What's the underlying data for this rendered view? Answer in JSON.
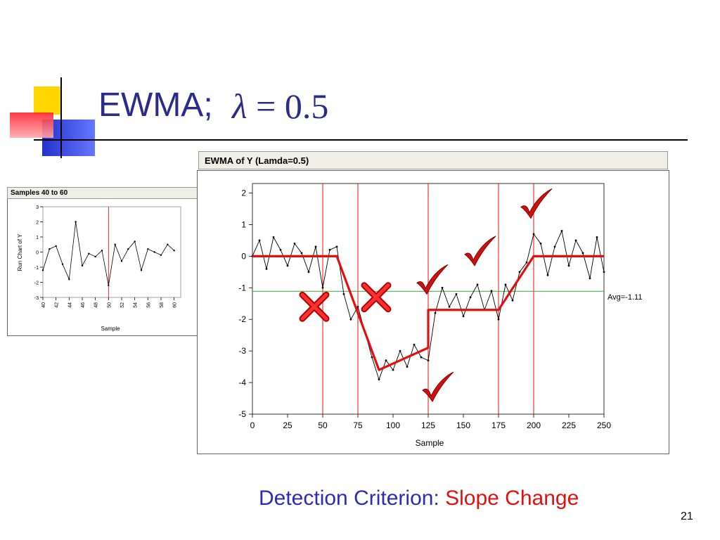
{
  "slide": {
    "title": "EWMA;",
    "lambda_symbol": "λ",
    "equals": " = ",
    "lambda_value": "0.5",
    "footer_label": "Detection Criterion: ",
    "footer_highlight": "Slope Change",
    "page_number": "21"
  },
  "colors": {
    "title": "#2b2b8c",
    "footer_label": "#2b2bb5",
    "highlight": "#e01010",
    "deco_yellow": "#ffd700",
    "deco_blue": "#3344dd",
    "deco_red": "#ff4455"
  },
  "mini_chart": {
    "header": "Samples 40 to 60",
    "ylabel": "Run Chart of Y",
    "xlabel": "Sample",
    "x_ticks": [
      "40",
      "42",
      "44",
      "46",
      "48",
      "50",
      "52",
      "54",
      "56",
      "58",
      "60"
    ],
    "y_ticks": [
      "3",
      "2",
      "1",
      "0",
      "-1",
      "-2",
      "-3"
    ]
  },
  "main_chart": {
    "header": "EWMA of Y (Lamda=0.5)",
    "xlabel": "Sample",
    "x_ticks": [
      "0",
      "25",
      "50",
      "75",
      "100",
      "125",
      "150",
      "175",
      "200",
      "225",
      "250"
    ],
    "y_ticks": [
      "2",
      "1",
      "0",
      "-1",
      "-2",
      "-3",
      "-4",
      "-5"
    ],
    "avg_label": "Avg=-1.11"
  },
  "chart_data": [
    {
      "type": "line",
      "xlabel": "Sample",
      "ylabel": "Run Chart of Y",
      "xlim": [
        40,
        61
      ],
      "ylim": [
        -3,
        3
      ],
      "reference_lines": [
        {
          "axis": "x",
          "value": 50
        }
      ],
      "series": [
        {
          "x": [
            40,
            41,
            42,
            43,
            44,
            45,
            46,
            47,
            48,
            49,
            50,
            51,
            52,
            53,
            54,
            55,
            56,
            57,
            58,
            59,
            60
          ],
          "values": [
            -1.2,
            0.2,
            0.4,
            -0.8,
            -1.8,
            2.0,
            -0.9,
            -0.1,
            -0.3,
            0.1,
            -2.2,
            0.5,
            -0.6,
            0.2,
            0.7,
            -1.2,
            0.2,
            0.0,
            -0.2,
            0.5,
            0.1
          ]
        }
      ]
    },
    {
      "type": "line",
      "xlabel": "Sample",
      "xlim": [
        0,
        250
      ],
      "ylim": [
        -5,
        2.3
      ],
      "average": -1.11,
      "reference_lines": [
        {
          "axis": "x",
          "value": 50
        },
        {
          "axis": "x",
          "value": 75
        },
        {
          "axis": "x",
          "value": 125
        },
        {
          "axis": "x",
          "value": 175
        },
        {
          "axis": "x",
          "value": 200
        },
        {
          "axis": "y",
          "value": -1.11
        }
      ],
      "series": [
        {
          "x": [
            0,
            5,
            10,
            15,
            20,
            25,
            30,
            35,
            40,
            45,
            50,
            55,
            60,
            65,
            70,
            75,
            80,
            85,
            90,
            95,
            100,
            105,
            110,
            115,
            120,
            125,
            130,
            135,
            140,
            145,
            150,
            155,
            160,
            165,
            170,
            175,
            180,
            185,
            190,
            195,
            200,
            205,
            210,
            215,
            220,
            225,
            230,
            235,
            240,
            245,
            250
          ],
          "values": [
            0.0,
            0.5,
            -0.4,
            0.6,
            0.2,
            -0.3,
            0.4,
            0.1,
            -0.5,
            0.3,
            -1.0,
            0.2,
            0.3,
            -1.2,
            -2.0,
            -1.6,
            -2.4,
            -3.2,
            -3.9,
            -3.3,
            -3.6,
            -3.0,
            -3.5,
            -2.8,
            -3.2,
            -3.3,
            -1.8,
            -1.0,
            -1.6,
            -1.2,
            -1.9,
            -1.3,
            -0.9,
            -1.7,
            -1.1,
            -2.0,
            -0.9,
            -1.4,
            -0.5,
            -0.2,
            0.7,
            0.4,
            -0.6,
            0.3,
            0.8,
            -0.3,
            0.5,
            0.1,
            -0.7,
            0.6,
            -0.5
          ]
        },
        {
          "x": [
            0,
            60,
            90,
            125,
            125,
            175,
            200,
            250
          ],
          "values": [
            0.0,
            0.0,
            -3.6,
            -2.9,
            -1.7,
            -1.7,
            0.0,
            0.0
          ]
        }
      ],
      "annotations": [
        {
          "x": 44,
          "y": -1.6,
          "mark": "cross-icon"
        },
        {
          "x": 88,
          "y": -1.3,
          "mark": "cross-icon"
        },
        {
          "x": 126,
          "y": -0.8,
          "mark": "check-icon"
        },
        {
          "x": 160,
          "y": 0.1,
          "mark": "check-icon"
        },
        {
          "x": 200,
          "y": 1.6,
          "mark": "check-icon"
        },
        {
          "x": 130,
          "y": -4.2,
          "mark": "check-icon"
        }
      ]
    }
  ]
}
